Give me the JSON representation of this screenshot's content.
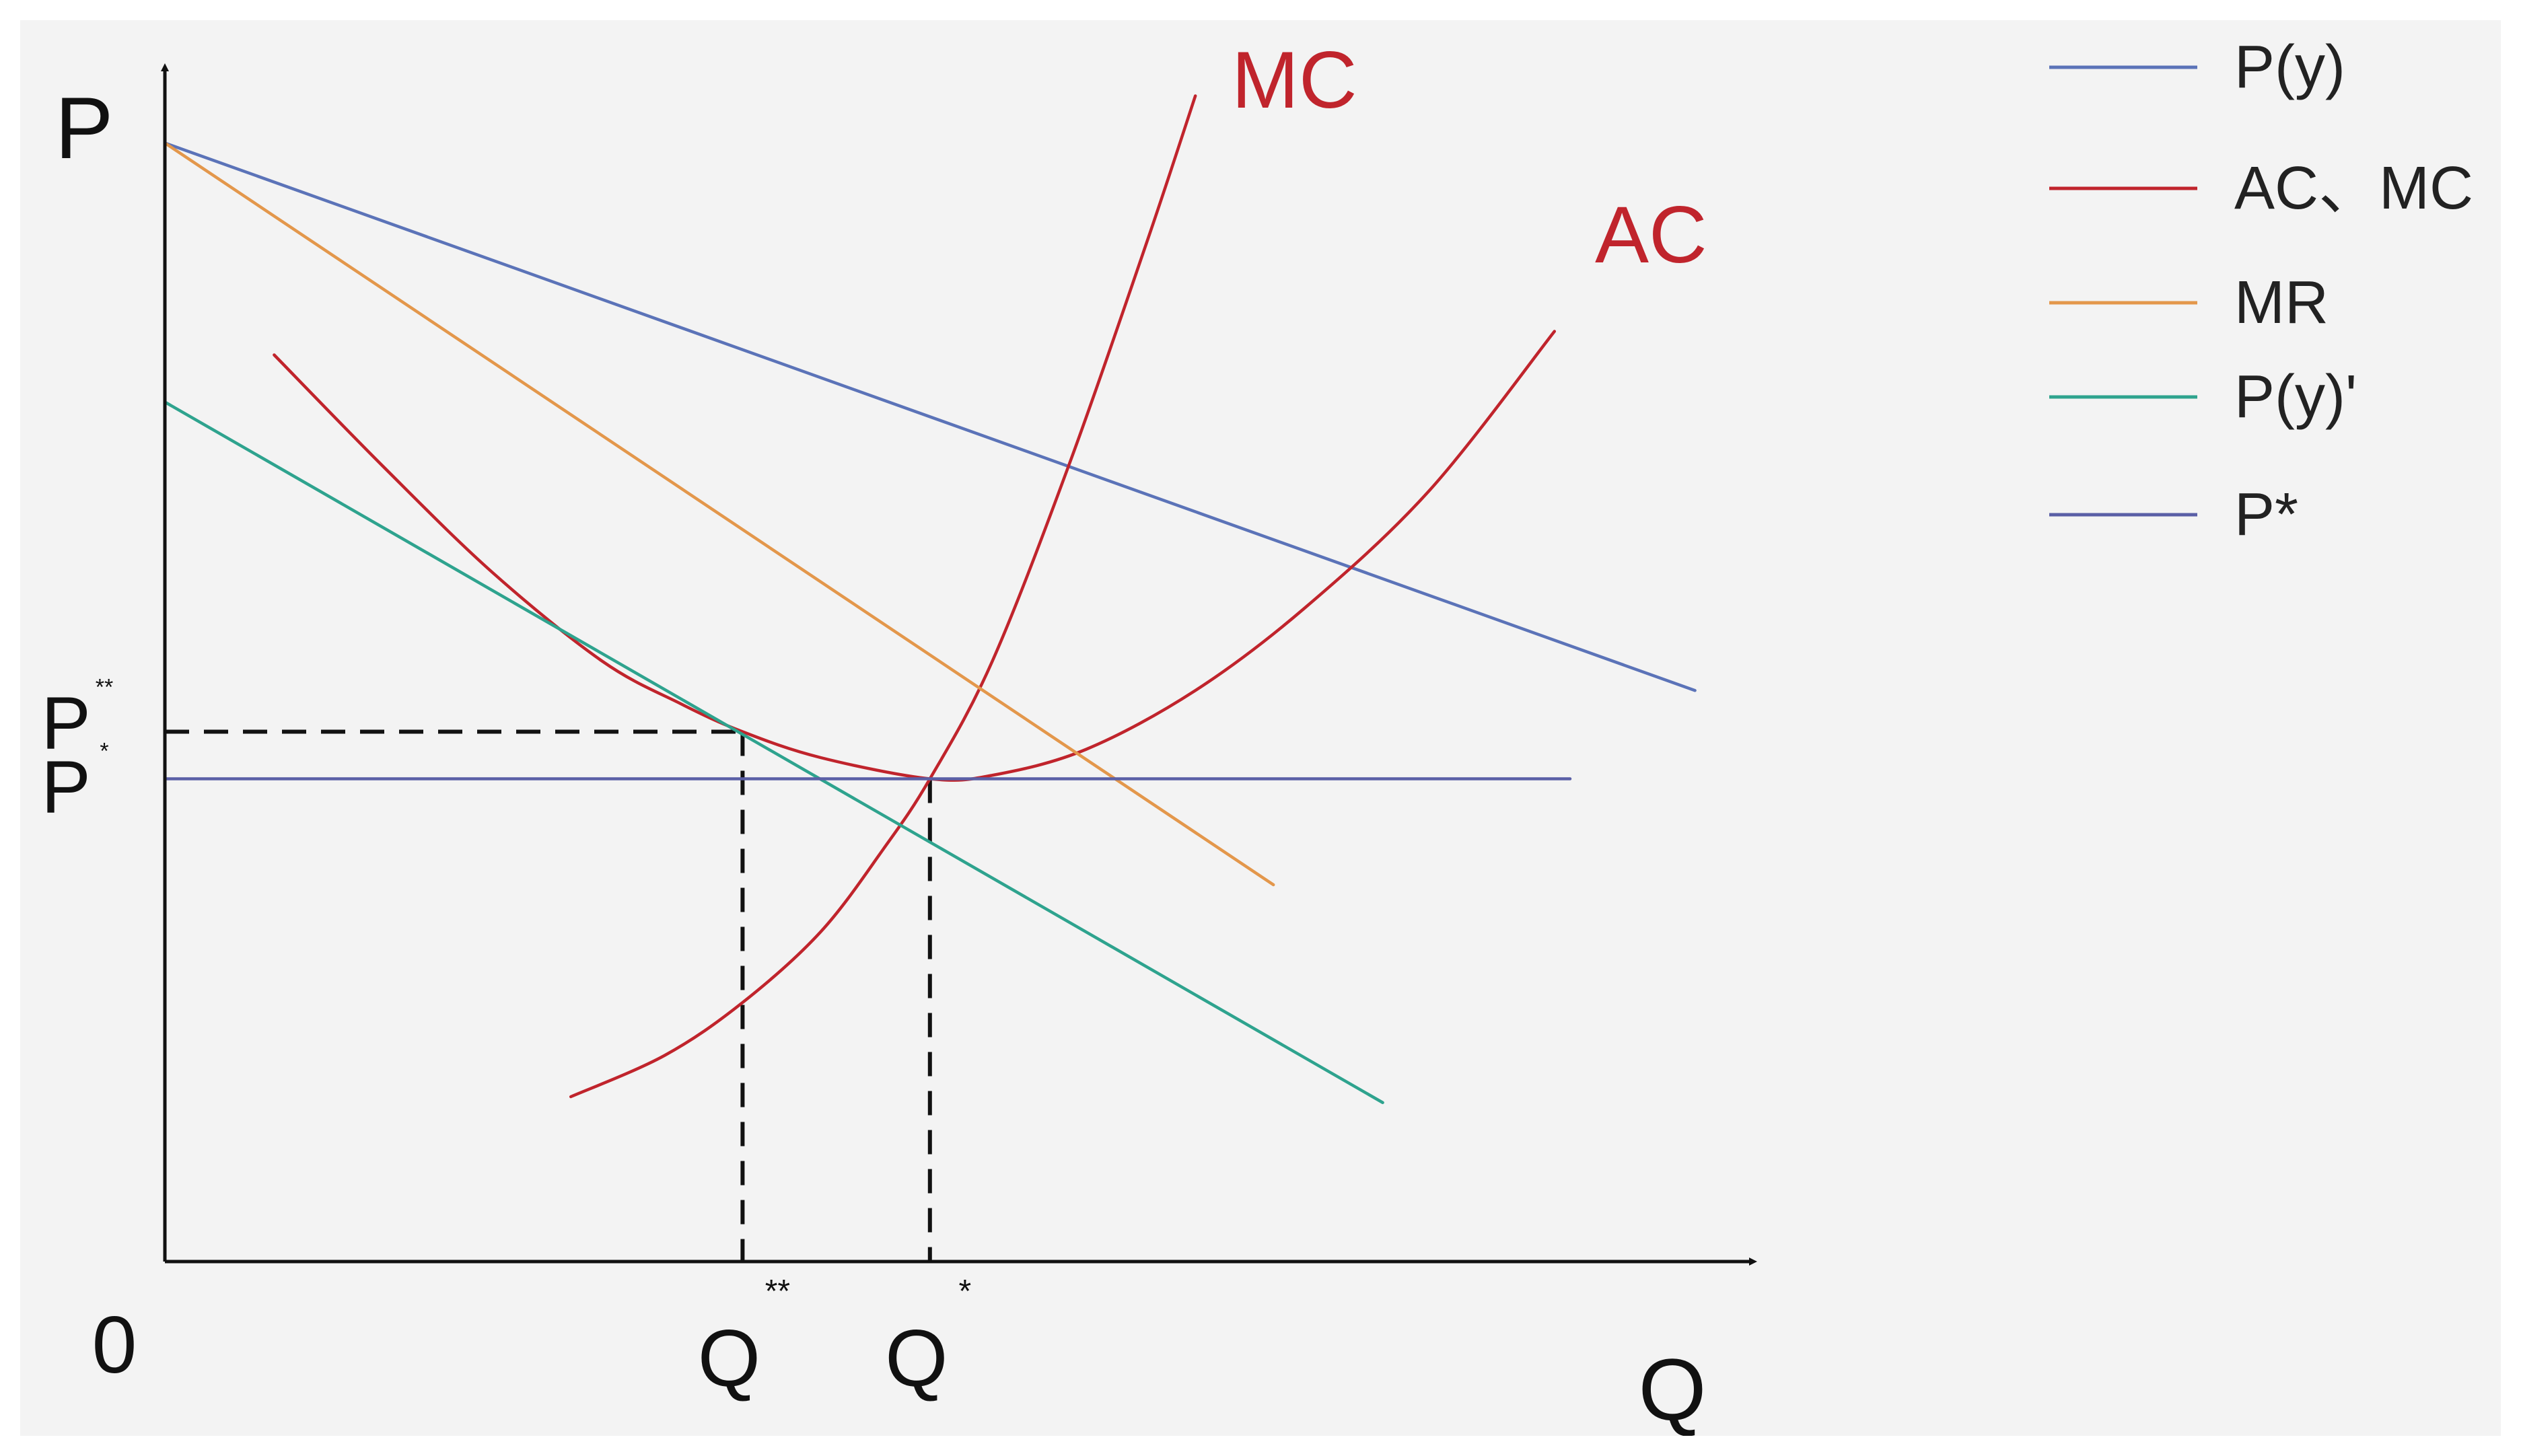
{
  "chart_data": {
    "type": "line",
    "title": "",
    "xlabel": "Q",
    "ylabel": "P",
    "origin_label": "0",
    "xlim": [
      0,
      10
    ],
    "ylim": [
      0,
      10
    ],
    "grid": false,
    "legend_position": "top-right",
    "x_tick_labels": [
      {
        "id": "q_star_star",
        "x": 3.7,
        "base": "Q",
        "sup": "**"
      },
      {
        "id": "q_star",
        "x": 4.9,
        "base": "Q",
        "sup": "*"
      }
    ],
    "y_tick_labels": [
      {
        "id": "p_star_star",
        "y": 4.5,
        "base": "P",
        "sup": "**"
      },
      {
        "id": "p_star",
        "y": 4.1,
        "base": "P",
        "sup": "*"
      }
    ],
    "series": [
      {
        "name": "P(y)",
        "legend": "P(y)",
        "color": "#5b73b8",
        "x": [
          0,
          9.8
        ],
        "y": [
          9.5,
          4.85
        ]
      },
      {
        "name": "AC",
        "legend": "AC、MC",
        "curve_label": "AC",
        "color": "#c0242c",
        "x": [
          0.7,
          1.4,
          2.1,
          2.8,
          3.3,
          3.7,
          4.2,
          4.9,
          5.3,
          5.9,
          6.6,
          7.3,
          8.1,
          8.9
        ],
        "y": [
          7.7,
          6.75,
          5.85,
          5.1,
          4.74,
          4.5,
          4.28,
          4.1,
          4.13,
          4.35,
          4.85,
          5.55,
          6.55,
          7.9
        ]
      },
      {
        "name": "MC",
        "curve_label": "MC",
        "color": "#c0242c",
        "x": [
          2.6,
          3.2,
          3.7,
          4.2,
          4.6,
          4.9,
          5.3,
          5.8,
          6.3,
          6.6
        ],
        "y": [
          1.4,
          1.75,
          2.2,
          2.8,
          3.5,
          4.1,
          5.1,
          6.8,
          8.7,
          9.9
        ]
      },
      {
        "name": "MR",
        "legend": "MR",
        "color": "#e3974b",
        "x": [
          0,
          7.1
        ],
        "y": [
          9.5,
          3.2
        ]
      },
      {
        "name": "P(y)'",
        "legend": "P(y)'",
        "color": "#2ea38e",
        "x": [
          0,
          7.8
        ],
        "y": [
          7.3,
          1.35
        ]
      },
      {
        "name": "P*",
        "legend": "P*",
        "color": "#5a5fa6",
        "x": [
          0,
          9.0
        ],
        "y": [
          4.1,
          4.1
        ]
      }
    ],
    "reference_lines": [
      {
        "id": "q_star_star_guide",
        "x": 3.7,
        "y": 4.5,
        "style": "dashed",
        "color": "#111111"
      },
      {
        "id": "q_star_guide",
        "x": 4.9,
        "y": 4.1,
        "style": "dashed",
        "color": "#111111"
      }
    ],
    "legend": [
      {
        "label": "P(y)",
        "color": "#5b73b8"
      },
      {
        "label": "AC、MC",
        "color": "#c0242c"
      },
      {
        "label": "MR",
        "color": "#e3974b"
      },
      {
        "label": "P(y)'",
        "color": "#2ea38e"
      },
      {
        "label": "P*",
        "color": "#5a5fa6"
      }
    ]
  }
}
